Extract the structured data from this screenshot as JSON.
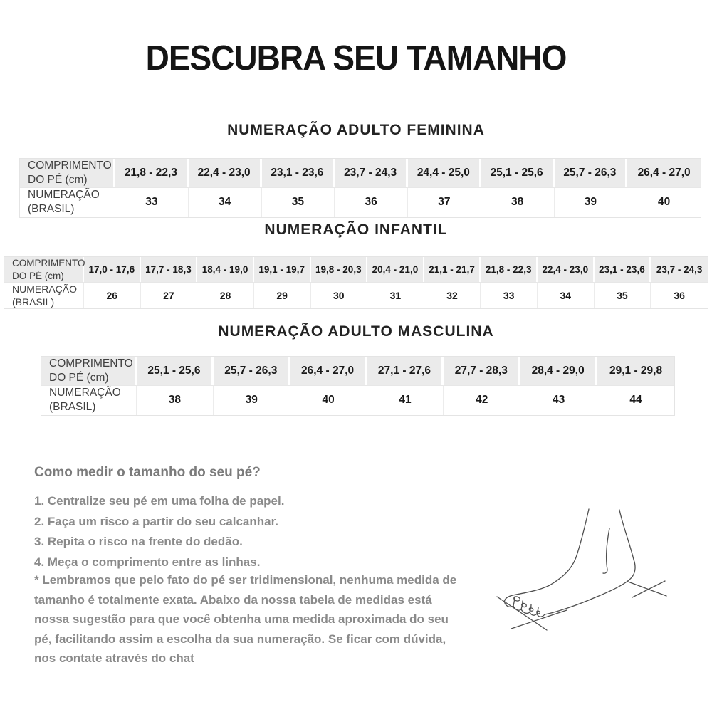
{
  "title": "DESCUBRA SEU TAMANHO",
  "tables": [
    {
      "heading": "NUMERAÇÃO ADULTO FEMININA",
      "length_label": "COMPRIMENTO\nDO PÉ (cm)",
      "size_label": "NUMERAÇÃO\n(BRASIL)",
      "foot_length_cm": [
        "21,8 - 22,3",
        "22,4 - 23,0",
        "23,1 - 23,6",
        "23,7 - 24,3",
        "24,4 - 25,0",
        "25,1 - 25,6",
        "25,7 - 26,3",
        "26,4 - 27,0"
      ],
      "brazil_sizes": [
        "33",
        "34",
        "35",
        "36",
        "37",
        "38",
        "39",
        "40"
      ]
    },
    {
      "heading": "NUMERAÇÃO INFANTIL",
      "length_label": "COMPRIMENTO\nDO PÉ (cm)",
      "size_label": "NUMERAÇÃO\n(BRASIL)",
      "foot_length_cm": [
        "17,0 - 17,6",
        "17,7 - 18,3",
        "18,4 - 19,0",
        "19,1 - 19,7",
        "19,8 - 20,3",
        "20,4 - 21,0",
        "21,1 - 21,7",
        "21,8 - 22,3",
        "22,4 - 23,0",
        "23,1 - 23,6",
        "23,7 - 24,3"
      ],
      "brazil_sizes": [
        "26",
        "27",
        "28",
        "29",
        "30",
        "31",
        "32",
        "33",
        "34",
        "35",
        "36"
      ]
    },
    {
      "heading": "NUMERAÇÃO ADULTO MASCULINA",
      "length_label": "COMPRIMENTO\nDO PÉ (cm)",
      "size_label": "NUMERAÇÃO\n(BRASIL)",
      "foot_length_cm": [
        "25,1 - 25,6",
        "25,7 - 26,3",
        "26,4 - 27,0",
        "27,1 - 27,6",
        "27,7 - 28,3",
        "28,4 - 29,0",
        "29,1 - 29,8"
      ],
      "brazil_sizes": [
        "38",
        "39",
        "40",
        "41",
        "42",
        "43",
        "44"
      ]
    }
  ],
  "how_to_measure": {
    "heading": "Como medir o tamanho do seu pé?",
    "steps": [
      "1. Centralize seu pé em uma folha de papel.",
      "2. Faça um risco a partir do seu calcanhar.",
      "3. Repita o risco na frente do dedão.",
      "4. Meça o comprimento entre as linhas."
    ],
    "note": "* Lembramos que pelo fato do pé ser tridimensional, nenhuma medida de tamanho é totalmente exata. Abaixo da nossa tabela de medidas está nossa sugestão para que você obtenha uma medida aproximada do seu pé, facilitando assim a escolha da sua numeração. Se ficar com dúvida, nos contate através do chat"
  },
  "illustration": {
    "name": "foot-measure-illustration"
  },
  "colors": {
    "header_row_bg": "#ebebeb",
    "table_border": "#e4e4e4",
    "title_text": "#151515",
    "muted_text": "#8a8a8a"
  }
}
